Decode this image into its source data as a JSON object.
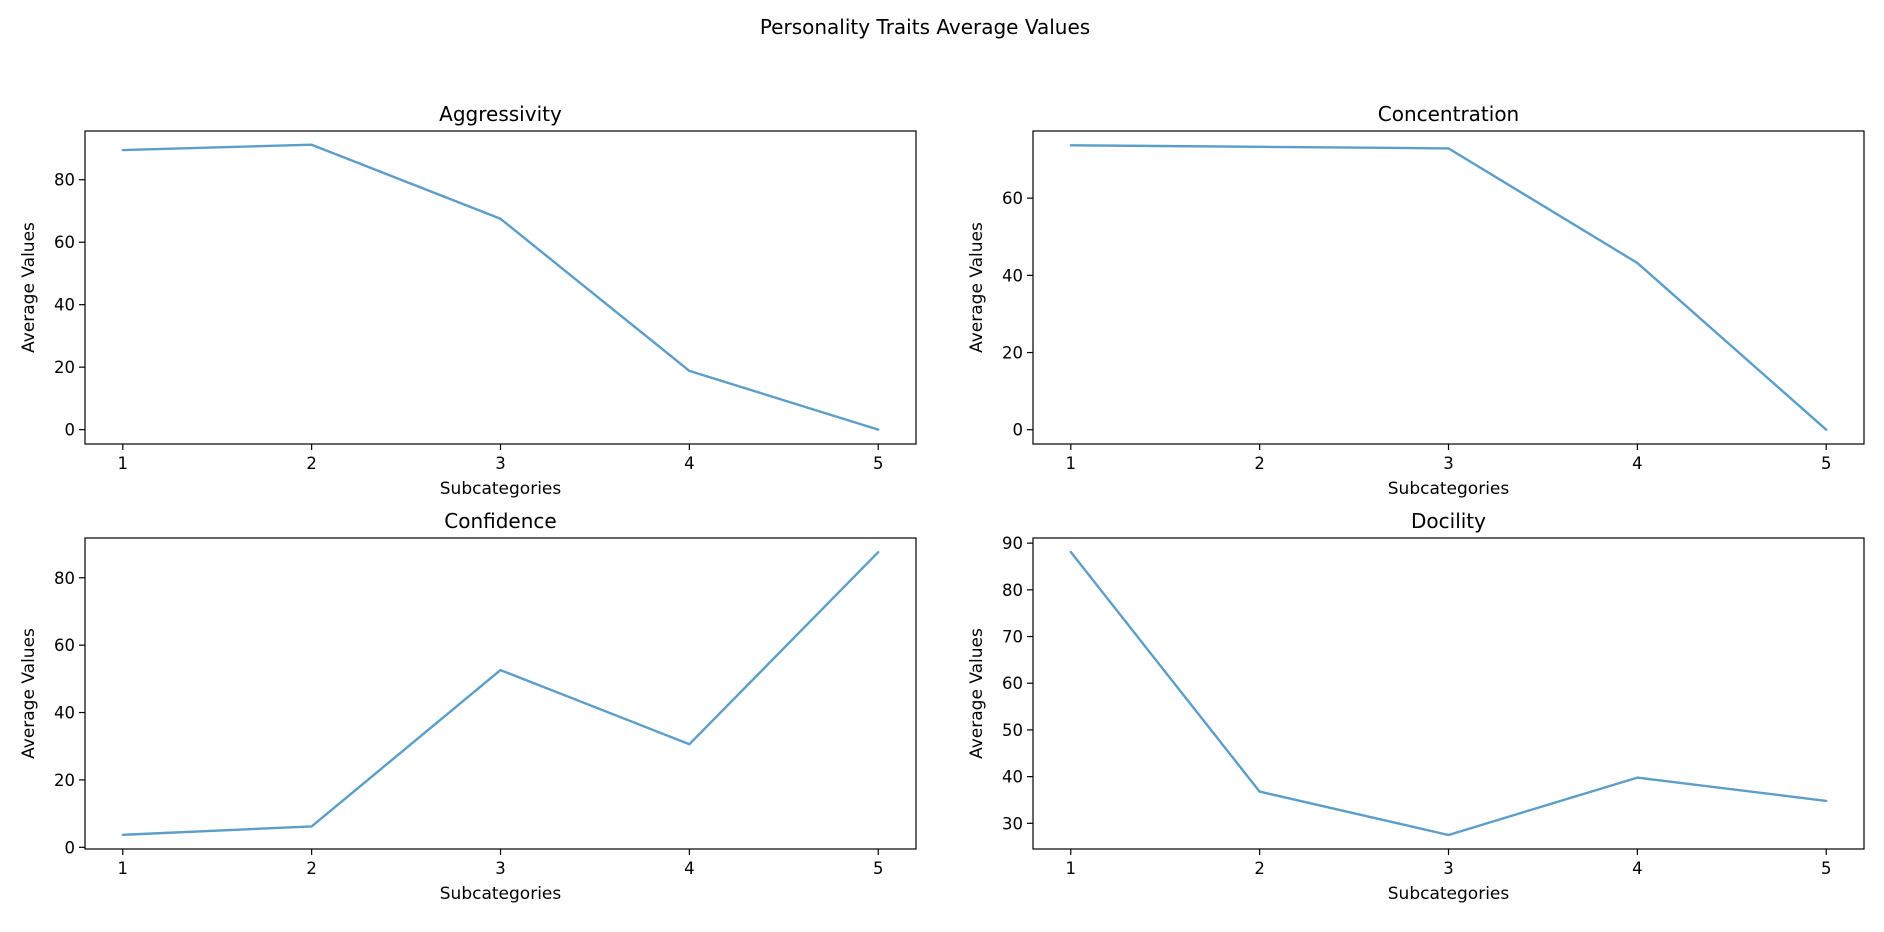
{
  "figure_title": "Personality Traits Average Values",
  "line_color": "#5b9ec9",
  "chart_data": [
    {
      "type": "line",
      "title": "Aggressivity",
      "xlabel": "Subcategories",
      "ylabel": "Average Values",
      "x": [
        1,
        2,
        3,
        4,
        5
      ],
      "values": [
        89.5,
        91.2,
        67.5,
        18.8,
        0
      ],
      "xlim": [
        0.8,
        5.2
      ],
      "ylim": [
        -4.6,
        95.6
      ],
      "xticks": [
        1,
        2,
        3,
        4,
        5
      ],
      "yticks": [
        0,
        20,
        40,
        60,
        80
      ],
      "grid": false,
      "legend": "none"
    },
    {
      "type": "line",
      "title": "Concentration",
      "xlabel": "Subcategories",
      "ylabel": "Average Values",
      "x": [
        1,
        2,
        3,
        4,
        5
      ],
      "values": [
        73.7,
        73.3,
        72.9,
        43.2,
        0
      ],
      "xlim": [
        0.8,
        5.2
      ],
      "ylim": [
        -3.7,
        77.4
      ],
      "xticks": [
        1,
        2,
        3,
        4,
        5
      ],
      "yticks": [
        0,
        20,
        40,
        60
      ],
      "grid": false,
      "legend": "none"
    },
    {
      "type": "line",
      "title": "Confidence",
      "xlabel": "Subcategories",
      "ylabel": "Average Values",
      "x": [
        1,
        2,
        3,
        4,
        5
      ],
      "values": [
        3.7,
        6.2,
        52.6,
        30.6,
        87.6
      ],
      "xlim": [
        0.8,
        5.2
      ],
      "ylim": [
        -0.5,
        91.8
      ],
      "xticks": [
        1,
        2,
        3,
        4,
        5
      ],
      "yticks": [
        0,
        20,
        40,
        60,
        80
      ],
      "grid": false,
      "legend": "none"
    },
    {
      "type": "line",
      "title": "Docility",
      "xlabel": "Subcategories",
      "ylabel": "Average Values",
      "x": [
        1,
        2,
        3,
        4,
        5
      ],
      "values": [
        88.1,
        36.8,
        27.5,
        39.8,
        34.8
      ],
      "xlim": [
        0.8,
        5.2
      ],
      "ylim": [
        24.5,
        91.1
      ],
      "xticks": [
        1,
        2,
        3,
        4,
        5
      ],
      "yticks": [
        30,
        40,
        50,
        60,
        70,
        80,
        90
      ],
      "grid": false,
      "legend": "none"
    }
  ]
}
